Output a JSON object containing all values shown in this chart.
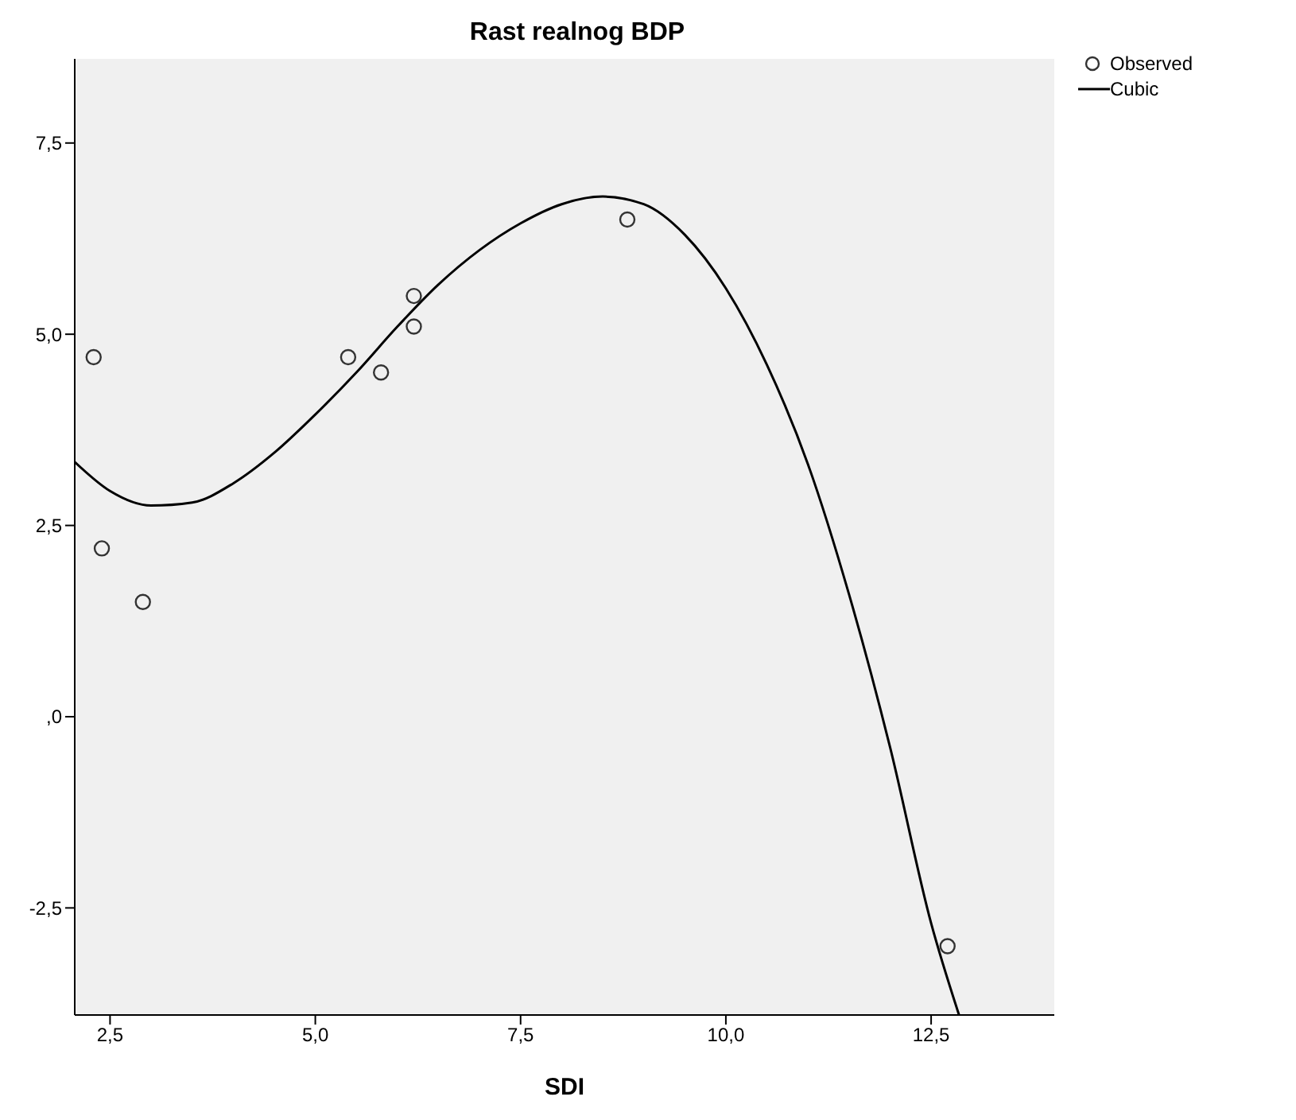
{
  "chart_data": {
    "type": "scatter",
    "title": "Rast realnog BDP",
    "xlabel": "SDI",
    "xlim": [
      2.07,
      14.0
    ],
    "ylim": [
      -3.9,
      8.6
    ],
    "xticks": [
      {
        "value": 2.5,
        "label": "2,5"
      },
      {
        "value": 5,
        "label": "5,0"
      },
      {
        "value": 7.5,
        "label": "7,5"
      },
      {
        "value": 10,
        "label": "10,0"
      },
      {
        "value": 12.5,
        "label": "12,5"
      }
    ],
    "yticks": [
      {
        "value": -2.5,
        "label": "-2,5"
      },
      {
        "value": 0,
        "label": ",0"
      },
      {
        "value": 2.5,
        "label": "2,5"
      },
      {
        "value": 5,
        "label": "5,0"
      },
      {
        "value": 7.5,
        "label": "7,5"
      }
    ],
    "legend": "top right",
    "grid": false,
    "series": [
      {
        "name": "Observed",
        "marker": "circle",
        "color": "#333333",
        "x": [
          2.3,
          2.4,
          2.9,
          5.4,
          5.8,
          6.2,
          6.2,
          8.8,
          12.7
        ],
        "values": [
          4.7,
          2.2,
          1.5,
          4.7,
          4.5,
          5.5,
          5.1,
          6.5,
          -3.0
        ]
      },
      {
        "name": "Cubic",
        "type": "line",
        "marker": "none",
        "color": "#000000",
        "x": [
          2.07,
          2.5,
          3.0,
          3.5,
          4.0,
          4.5,
          5.0,
          5.5,
          6.0,
          6.5,
          7.0,
          7.5,
          8.0,
          8.5,
          9.0,
          9.5,
          10.0,
          10.5,
          11.0,
          11.5,
          12.0,
          12.5,
          12.84
        ],
        "values": [
          3.33,
          2.95,
          2.76,
          2.8,
          3.05,
          3.45,
          3.95,
          4.5,
          5.1,
          5.65,
          6.1,
          6.45,
          6.7,
          6.8,
          6.7,
          6.3,
          5.6,
          4.6,
          3.3,
          1.6,
          -0.4,
          -2.7,
          -3.9
        ]
      }
    ]
  }
}
